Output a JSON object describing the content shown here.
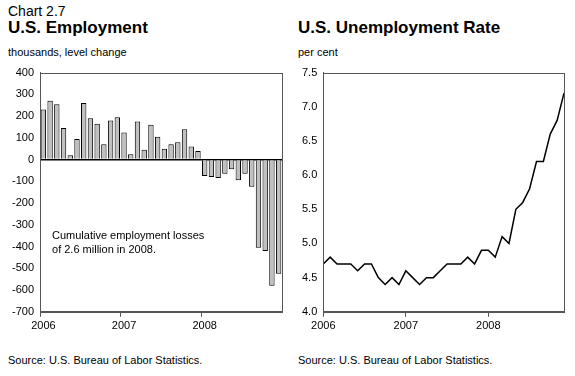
{
  "label": "Chart 2.7",
  "chart_data": [
    {
      "type": "bar",
      "title": "U.S. Employment",
      "y_label": "thousands, level change",
      "annotation": "Cumulative employment losses of 2.6 million in 2008.",
      "source": "Source: U.S. Bureau of Labor Statistics.",
      "categories": [
        "2006",
        null,
        null,
        null,
        null,
        null,
        null,
        null,
        null,
        null,
        null,
        null,
        "2007",
        null,
        null,
        null,
        null,
        null,
        null,
        null,
        null,
        null,
        null,
        null,
        "2008",
        null,
        null,
        null,
        null,
        null,
        null,
        null,
        null,
        null,
        null,
        null
      ],
      "values": [
        230,
        270,
        255,
        145,
        20,
        95,
        260,
        190,
        165,
        70,
        180,
        195,
        125,
        25,
        175,
        45,
        160,
        105,
        50,
        70,
        80,
        140,
        60,
        40,
        -75,
        -80,
        -85,
        -65,
        -45,
        -95,
        -65,
        -125,
        -405,
        -420,
        -580,
        -525
      ],
      "color": "#c0c0c0",
      "ylim": [
        -700,
        400
      ],
      "yticks": [
        -700,
        -600,
        -500,
        -400,
        -300,
        -200,
        -100,
        0,
        100,
        200,
        300,
        400
      ],
      "grid": false
    },
    {
      "type": "line",
      "title": "U.S. Unemployment Rate",
      "y_label": "per cent",
      "source": "Source: U.S. Bureau of Labor Statistics.",
      "categories": [
        "2006",
        null,
        null,
        null,
        null,
        null,
        null,
        null,
        null,
        null,
        null,
        null,
        "2007",
        null,
        null,
        null,
        null,
        null,
        null,
        null,
        null,
        null,
        null,
        null,
        "2008",
        null,
        null,
        null,
        null,
        null,
        null,
        null,
        null,
        null,
        null,
        null
      ],
      "values": [
        4.7,
        4.8,
        4.7,
        4.7,
        4.7,
        4.6,
        4.7,
        4.7,
        4.5,
        4.4,
        4.5,
        4.4,
        4.6,
        4.5,
        4.4,
        4.5,
        4.5,
        4.6,
        4.7,
        4.7,
        4.7,
        4.8,
        4.7,
        4.9,
        4.9,
        4.8,
        5.1,
        5.0,
        5.5,
        5.6,
        5.8,
        6.2,
        6.2,
        6.6,
        6.8,
        7.2
      ],
      "color": "#000000",
      "ylim": [
        4,
        7.5
      ],
      "yticks": [
        {
          "value": 4,
          "label": "4.0"
        },
        4.5,
        {
          "value": 5,
          "label": "5.0"
        },
        5.5,
        {
          "value": 6,
          "label": "6.0"
        },
        6.5,
        {
          "value": 7,
          "label": "7.0"
        },
        7.5
      ],
      "grid": false
    }
  ]
}
